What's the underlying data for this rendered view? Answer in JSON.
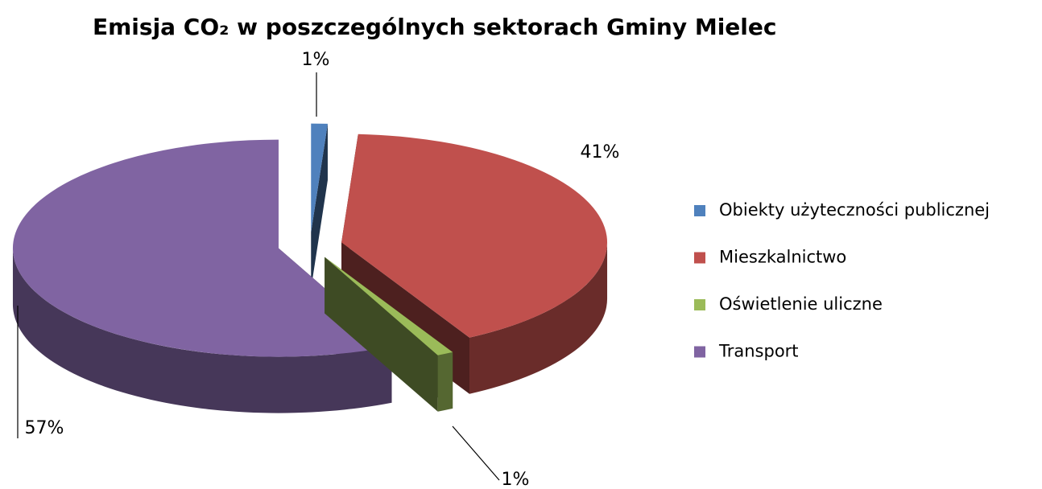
{
  "chart_data": {
    "type": "pie3d",
    "title": "Emisja CO₂ w poszczególnych sektorach  Gminy Mielec",
    "categories": [
      "Obiekty użyteczności  publicznej",
      "Mieszkalnictwo",
      "Oświetlenie uliczne",
      "Transport"
    ],
    "values": [
      1,
      41,
      1,
      57
    ],
    "value_labels": [
      "1%",
      "41%",
      "1%",
      "57%"
    ],
    "colors": [
      "#4f81bd",
      "#c0504d",
      "#9bbb59",
      "#8064a2"
    ],
    "legend": "right"
  }
}
